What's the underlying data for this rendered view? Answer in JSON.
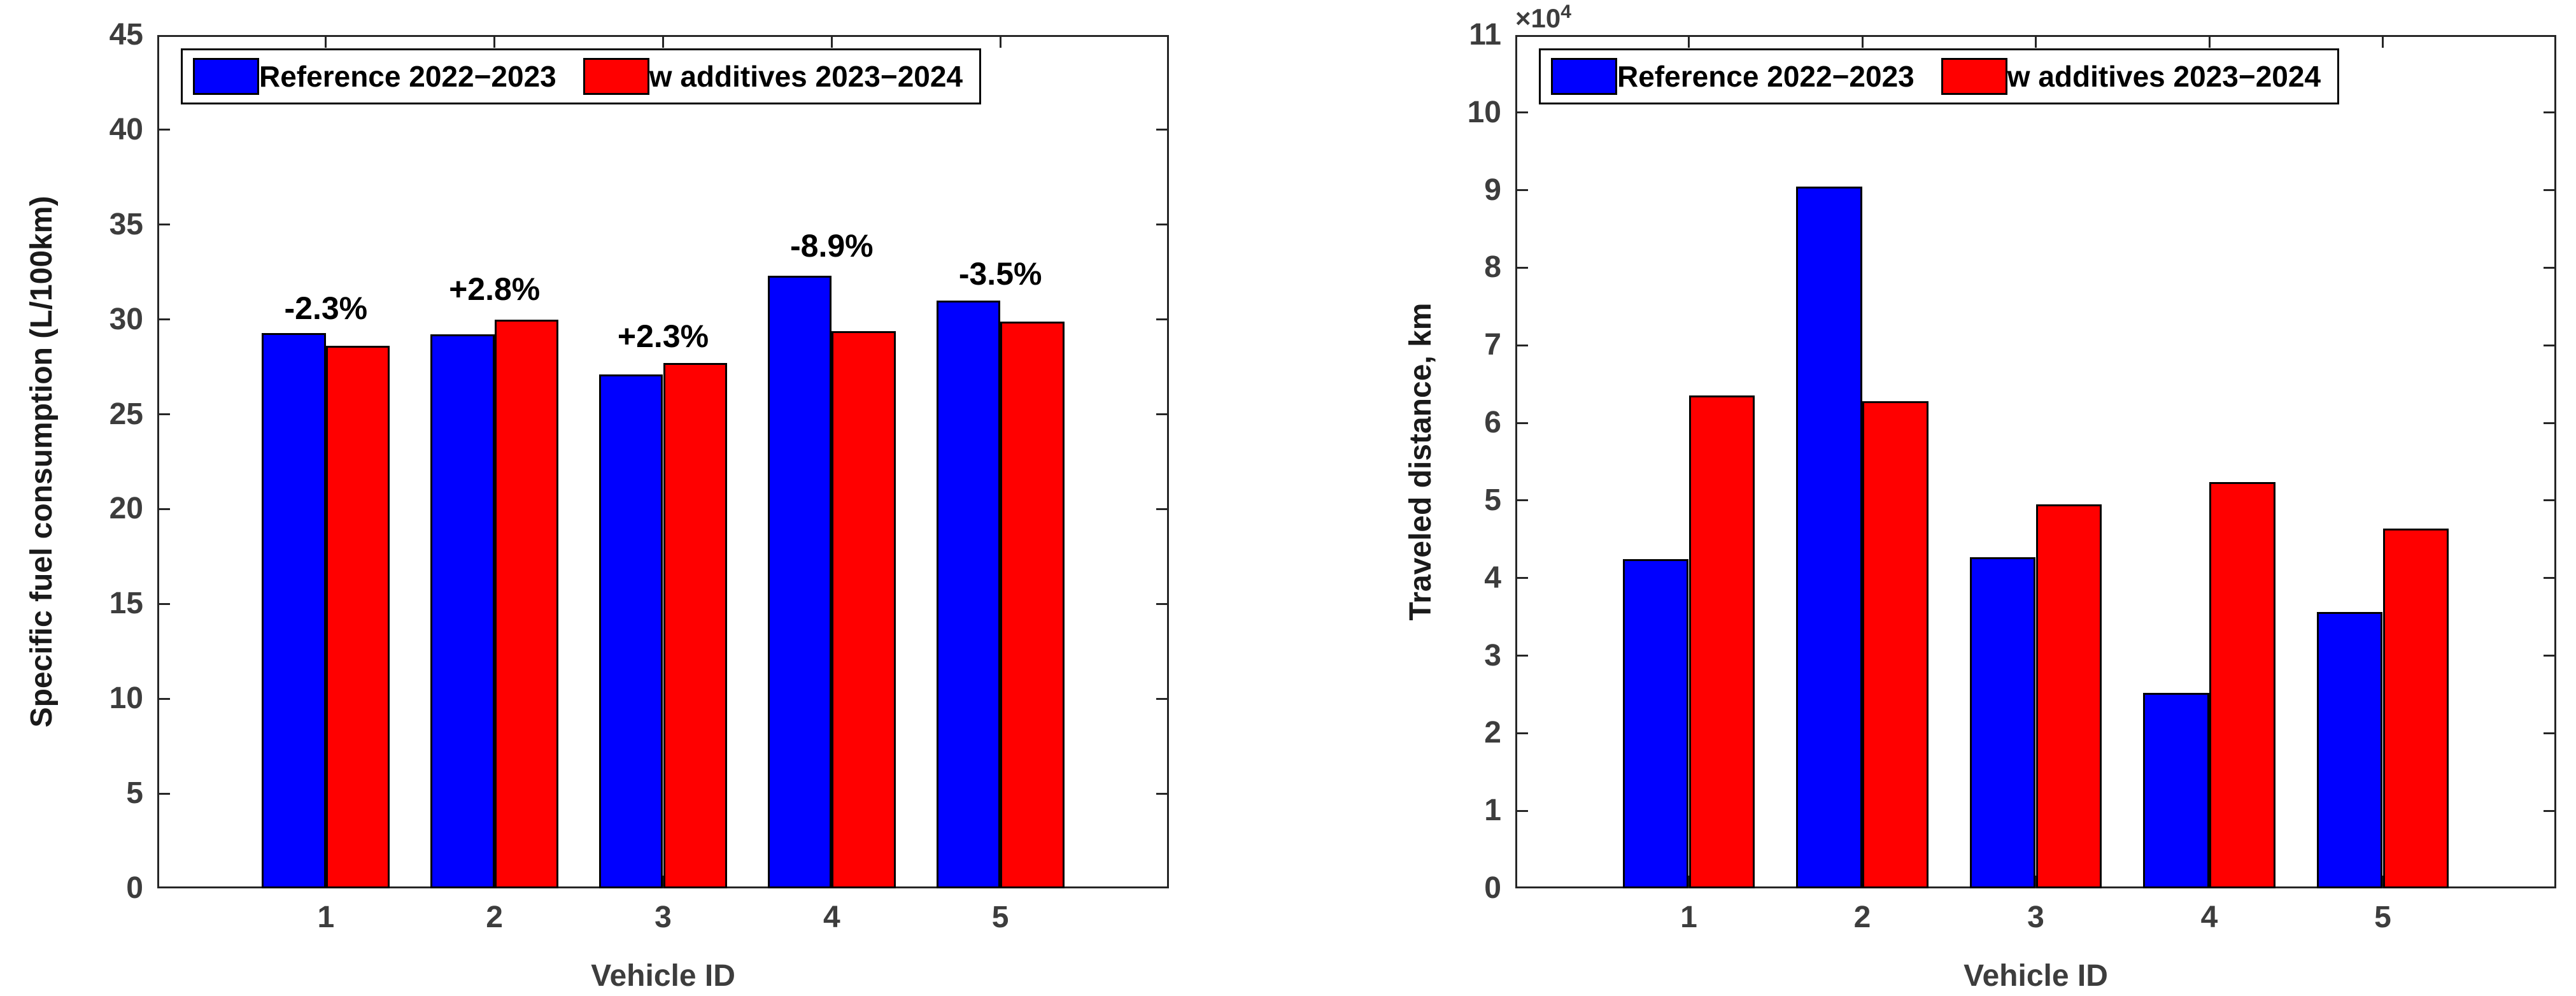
{
  "page": {
    "background": "#ffffff"
  },
  "colors": {
    "series_blue": "#0000ff",
    "series_red": "#ff0000",
    "axis": "#262626",
    "tick_label": "#3d3d3d",
    "bar_edge": "#000000",
    "legend_text": "#000000"
  },
  "chart_data": [
    {
      "id": "fuel-consumption",
      "type": "bar",
      "title": "",
      "xlabel": "Vehicle ID",
      "ylabel": "Specific fuel consumption (L/100km)",
      "categories": [
        "1",
        "2",
        "3",
        "4",
        "5"
      ],
      "series": [
        {
          "name": "Reference 2022−2023",
          "color": "#0000ff",
          "values": [
            29.3,
            29.2,
            27.1,
            32.3,
            31.0
          ]
        },
        {
          "name": "w additives 2023−2024",
          "color": "#ff0000",
          "values": [
            28.6,
            30.0,
            27.7,
            29.4,
            29.9
          ]
        }
      ],
      "annotations": [
        {
          "text": "-2.3%",
          "y": 30.6
        },
        {
          "text": "+2.8%",
          "y": 31.6
        },
        {
          "text": "+2.3%",
          "y": 29.1
        },
        {
          "text": "-8.9%",
          "y": 33.9
        },
        {
          "text": "-3.5%",
          "y": 32.4
        }
      ],
      "ylim": [
        0,
        45
      ],
      "ytick_step": 5,
      "grid": false,
      "legend_position": "top-left-inside"
    },
    {
      "id": "traveled-distance",
      "type": "bar",
      "title": "",
      "xlabel": "Vehicle ID",
      "ylabel": "Traveled distance, km",
      "categories": [
        "1",
        "2",
        "3",
        "4",
        "5"
      ],
      "series": [
        {
          "name": "Reference 2022−2023",
          "color": "#0000ff",
          "values": [
            42400,
            90500,
            42700,
            25200,
            35600
          ]
        },
        {
          "name": "w additives 2023−2024",
          "color": "#ff0000",
          "values": [
            63500,
            62800,
            49500,
            52400,
            46400
          ]
        }
      ],
      "annotations": [],
      "ylim": [
        0,
        110000
      ],
      "ytick_step": 10000,
      "y_multiplier": 10000,
      "y_multiplier_base": "×10",
      "y_multiplier_exp": "4",
      "grid": false,
      "legend_position": "top-left-inside"
    }
  ]
}
